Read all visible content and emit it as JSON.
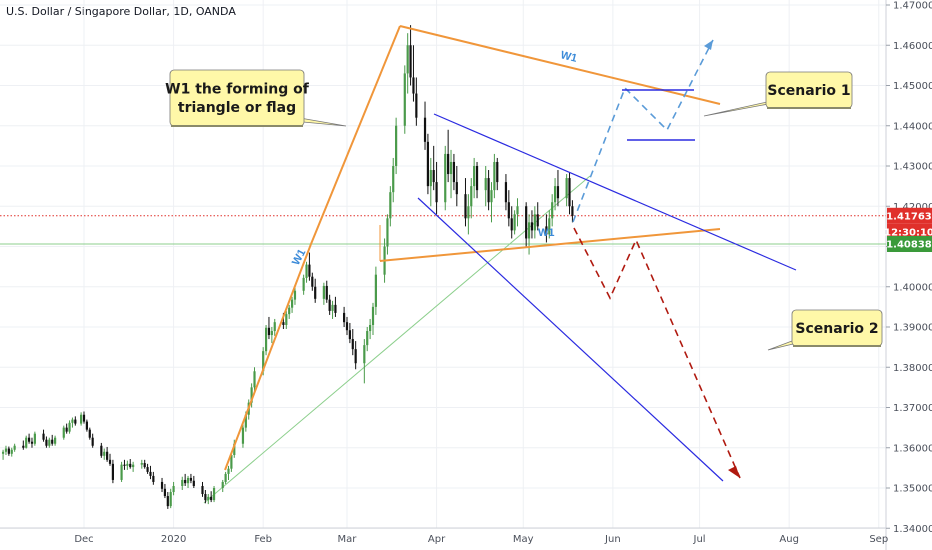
{
  "header": {
    "title": "U.S. Dollar / Singapore Dollar, 1D, OANDA"
  },
  "price_axis": {
    "current_price": "1.41763",
    "countdown": "12:30:10",
    "level_price": "1.40838"
  },
  "annotations": {
    "callout_main_line1": "W1 the forming of",
    "callout_main_line2": "triangle or flag",
    "scenario1": "Scenario 1",
    "scenario2": "Scenario 2",
    "wave_label_top": "W1",
    "wave_label_left": "W1",
    "wave_label_mid": "W1"
  },
  "colors": {
    "bull": "#4a9a4a",
    "bear": "#111111",
    "orange_line": "#f0963a",
    "blue_line": "#2b2be0",
    "green_line": "#8ccf8c",
    "scenario_up": "#5a9bd8",
    "scenario_down": "#b01a10",
    "callout_fill": "#fff8a8",
    "price_badge": "#e0302b",
    "level_badge": "#3a9a3a"
  },
  "chart_data": {
    "type": "candlestick",
    "symbol": "U.S. Dollar / Singapore Dollar",
    "timeframe": "1D",
    "source": "OANDA",
    "y_ticks": [
      "1.47000",
      "1.46000",
      "1.45000",
      "1.44000",
      "1.43000",
      "1.42000",
      "1.41000",
      "1.40000",
      "1.39000",
      "1.38000",
      "1.37000",
      "1.36000",
      "1.35000",
      "1.34000"
    ],
    "ylim": [
      1.3375,
      1.4725
    ],
    "x_labels": [
      {
        "label": "Dec",
        "day": 0
      },
      {
        "label": "2020",
        "day": 31
      },
      {
        "label": "Feb",
        "day": 62
      },
      {
        "label": "Mar",
        "day": 91
      },
      {
        "label": "Apr",
        "day": 122
      },
      {
        "label": "May",
        "day": 152
      },
      {
        "label": "Jun",
        "day": 183
      },
      {
        "label": "Jul",
        "day": 213
      },
      {
        "label": "Aug",
        "day": 244
      },
      {
        "label": "Sep",
        "day": 275
      }
    ],
    "current_price": 1.41763,
    "horizontal_level": 1.40838,
    "candles": [
      [
        -28,
        1.3585,
        1.3595,
        1.357,
        1.359
      ],
      [
        -27,
        1.359,
        1.3605,
        1.3582,
        1.3598
      ],
      [
        -26,
        1.3598,
        1.3603,
        1.358,
        1.3585
      ],
      [
        -25,
        1.3585,
        1.36,
        1.3578,
        1.3595
      ],
      [
        -24,
        1.3595,
        1.361,
        1.359,
        1.3605
      ],
      [
        -21,
        1.3605,
        1.3618,
        1.3595,
        1.36
      ],
      [
        -20,
        1.36,
        1.363,
        1.3598,
        1.3625
      ],
      [
        -19,
        1.3625,
        1.3635,
        1.361,
        1.3615
      ],
      [
        -18,
        1.3615,
        1.3625,
        1.36,
        1.361
      ],
      [
        -17,
        1.361,
        1.364,
        1.3605,
        1.3635
      ],
      [
        -14,
        1.3635,
        1.3645,
        1.3615,
        1.362
      ],
      [
        -13,
        1.362,
        1.3628,
        1.36,
        1.3605
      ],
      [
        -12,
        1.3605,
        1.3625,
        1.36,
        1.362
      ],
      [
        -11,
        1.362,
        1.3632,
        1.3605,
        1.361
      ],
      [
        -10,
        1.361,
        1.363,
        1.3605,
        1.3625
      ],
      [
        -7,
        1.3625,
        1.3655,
        1.362,
        1.365
      ],
      [
        -6,
        1.365,
        1.366,
        1.3635,
        1.364
      ],
      [
        -5,
        1.364,
        1.3668,
        1.3635,
        1.3662
      ],
      [
        -4,
        1.3662,
        1.3675,
        1.365,
        1.367
      ],
      [
        -3,
        1.367,
        1.3678,
        1.3655,
        1.366
      ],
      [
        -1,
        1.366,
        1.3688,
        1.3655,
        1.3682
      ],
      [
        0,
        1.3682,
        1.369,
        1.366,
        1.3665
      ],
      [
        1,
        1.3665,
        1.367,
        1.364,
        1.3645
      ],
      [
        2,
        1.3645,
        1.365,
        1.362,
        1.3625
      ],
      [
        3,
        1.3625,
        1.3635,
        1.36,
        1.3605
      ],
      [
        6,
        1.3605,
        1.3612,
        1.3575,
        1.358
      ],
      [
        7,
        1.358,
        1.3598,
        1.357,
        1.359
      ],
      [
        8,
        1.359,
        1.3602,
        1.3565,
        1.357
      ],
      [
        9,
        1.357,
        1.3585,
        1.3555,
        1.356
      ],
      [
        10,
        1.356,
        1.357,
        1.3512,
        1.352
      ],
      [
        13,
        1.352,
        1.3565,
        1.3515,
        1.3558
      ],
      [
        14,
        1.3558,
        1.357,
        1.3545,
        1.3555
      ],
      [
        15,
        1.3555,
        1.3568,
        1.3545,
        1.356
      ],
      [
        16,
        1.356,
        1.3572,
        1.3548,
        1.3552
      ],
      [
        17,
        1.3552,
        1.3565,
        1.354,
        1.3558
      ],
      [
        20,
        1.3558,
        1.357,
        1.3548,
        1.3562
      ],
      [
        21,
        1.3562,
        1.357,
        1.3548,
        1.3552
      ],
      [
        22,
        1.3552,
        1.356,
        1.3535,
        1.354
      ],
      [
        23,
        1.354,
        1.3555,
        1.3522,
        1.353
      ],
      [
        24,
        1.353,
        1.354,
        1.3508,
        1.3515
      ],
      [
        27,
        1.3515,
        1.3525,
        1.349,
        1.3498
      ],
      [
        28,
        1.3498,
        1.351,
        1.3475,
        1.348
      ],
      [
        29,
        1.348,
        1.349,
        1.3448,
        1.3455
      ],
      [
        30,
        1.3455,
        1.3498,
        1.345,
        1.349
      ],
      [
        31,
        1.349,
        1.3515,
        1.3482,
        1.3505
      ],
      [
        34,
        1.3505,
        1.3528,
        1.3495,
        1.352
      ],
      [
        35,
        1.352,
        1.3535,
        1.3505,
        1.3512
      ],
      [
        36,
        1.3512,
        1.353,
        1.35,
        1.3525
      ],
      [
        37,
        1.3525,
        1.3535,
        1.3512,
        1.3518
      ],
      [
        38,
        1.3518,
        1.353,
        1.35,
        1.3505
      ],
      [
        41,
        1.3505,
        1.3515,
        1.3478,
        1.3485
      ],
      [
        42,
        1.3485,
        1.3495,
        1.3462,
        1.347
      ],
      [
        43,
        1.347,
        1.3485,
        1.346,
        1.3478
      ],
      [
        44,
        1.3478,
        1.3492,
        1.3465,
        1.347
      ],
      [
        45,
        1.347,
        1.3505,
        1.3465,
        1.35
      ],
      [
        48,
        1.35,
        1.352,
        1.349,
        1.3515
      ],
      [
        49,
        1.3515,
        1.354,
        1.351,
        1.3535
      ],
      [
        50,
        1.3535,
        1.3555,
        1.352,
        1.3548
      ],
      [
        51,
        1.3548,
        1.359,
        1.354,
        1.3582
      ],
      [
        52,
        1.3582,
        1.362,
        1.3575,
        1.361
      ],
      [
        55,
        1.361,
        1.366,
        1.36,
        1.365
      ],
      [
        56,
        1.365,
        1.369,
        1.364,
        1.3682
      ],
      [
        57,
        1.3682,
        1.372,
        1.367,
        1.3712
      ],
      [
        58,
        1.3712,
        1.376,
        1.37,
        1.375
      ],
      [
        59,
        1.375,
        1.38,
        1.3738,
        1.379
      ],
      [
        62,
        1.379,
        1.385,
        1.378,
        1.384
      ],
      [
        63,
        1.384,
        1.3905,
        1.383,
        1.3898
      ],
      [
        64,
        1.3898,
        1.3925,
        1.387,
        1.388
      ],
      [
        65,
        1.388,
        1.39,
        1.386,
        1.389
      ],
      [
        66,
        1.389,
        1.392,
        1.3878,
        1.3912
      ],
      [
        69,
        1.3912,
        1.3935,
        1.3895,
        1.3905
      ],
      [
        70,
        1.3905,
        1.394,
        1.3895,
        1.3932
      ],
      [
        71,
        1.3932,
        1.3955,
        1.392,
        1.3948
      ],
      [
        72,
        1.3948,
        1.3975,
        1.3935,
        1.3968
      ],
      [
        73,
        1.3968,
        1.4,
        1.3955,
        1.399
      ],
      [
        76,
        1.399,
        1.403,
        1.398,
        1.4022
      ],
      [
        77,
        1.4022,
        1.4062,
        1.401,
        1.4055
      ],
      [
        78,
        1.4055,
        1.4085,
        1.4015,
        1.4025
      ],
      [
        79,
        1.4025,
        1.4035,
        1.399,
        1.4
      ],
      [
        80,
        1.4,
        1.402,
        1.396,
        1.397
      ],
      [
        83,
        1.397,
        1.401,
        1.3955,
        1.4002
      ],
      [
        84,
        1.4002,
        1.4015,
        1.396,
        1.3968
      ],
      [
        85,
        1.3968,
        1.398,
        1.393,
        1.394
      ],
      [
        86,
        1.394,
        1.3965,
        1.392,
        1.3955
      ],
      [
        87,
        1.3955,
        1.3975,
        1.3925,
        1.3935
      ],
      [
        90,
        1.3935,
        1.395,
        1.39,
        1.3912
      ],
      [
        91,
        1.3912,
        1.3925,
        1.388,
        1.3892
      ],
      [
        92,
        1.3892,
        1.391,
        1.386,
        1.387
      ],
      [
        93,
        1.387,
        1.3895,
        1.383,
        1.3845
      ],
      [
        94,
        1.3845,
        1.3865,
        1.3795,
        1.381
      ],
      [
        97,
        1.381,
        1.387,
        1.376,
        1.3855
      ],
      [
        98,
        1.3855,
        1.39,
        1.384,
        1.389
      ],
      [
        99,
        1.389,
        1.392,
        1.387,
        1.3905
      ],
      [
        100,
        1.3905,
        1.396,
        1.388,
        1.395
      ],
      [
        101,
        1.395,
        1.405,
        1.393,
        1.403
      ],
      [
        104,
        1.403,
        1.412,
        1.401,
        1.41
      ],
      [
        105,
        1.41,
        1.418,
        1.408,
        1.417
      ],
      [
        106,
        1.417,
        1.425,
        1.415,
        1.4235
      ],
      [
        107,
        1.4235,
        1.432,
        1.421,
        1.43
      ],
      [
        108,
        1.43,
        1.442,
        1.428,
        1.44
      ],
      [
        111,
        1.44,
        1.455,
        1.438,
        1.453
      ],
      [
        112,
        1.453,
        1.463,
        1.448,
        1.46
      ],
      [
        113,
        1.46,
        1.465,
        1.45,
        1.452
      ],
      [
        114,
        1.452,
        1.46,
        1.446,
        1.448
      ],
      [
        115,
        1.448,
        1.452,
        1.44,
        1.442
      ],
      [
        118,
        1.442,
        1.446,
        1.434,
        1.436
      ],
      [
        119,
        1.436,
        1.438,
        1.423,
        1.425
      ],
      [
        120,
        1.425,
        1.432,
        1.42,
        1.429
      ],
      [
        121,
        1.429,
        1.435,
        1.424,
        1.426
      ],
      [
        122,
        1.426,
        1.431,
        1.418,
        1.421
      ],
      [
        125,
        1.421,
        1.435,
        1.419,
        1.433
      ],
      [
        126,
        1.433,
        1.439,
        1.426,
        1.428
      ],
      [
        127,
        1.428,
        1.434,
        1.422,
        1.431
      ],
      [
        128,
        1.431,
        1.433,
        1.424,
        1.426
      ],
      [
        129,
        1.426,
        1.43,
        1.42,
        1.423
      ],
      [
        132,
        1.423,
        1.427,
        1.415,
        1.417
      ],
      [
        133,
        1.417,
        1.423,
        1.413,
        1.42
      ],
      [
        134,
        1.42,
        1.427,
        1.417,
        1.425
      ],
      [
        135,
        1.425,
        1.432,
        1.422,
        1.43
      ],
      [
        136,
        1.43,
        1.431,
        1.422,
        1.424
      ],
      [
        139,
        1.424,
        1.43,
        1.42,
        1.427
      ],
      [
        140,
        1.427,
        1.429,
        1.419,
        1.421
      ],
      [
        141,
        1.421,
        1.426,
        1.416,
        1.424
      ],
      [
        142,
        1.424,
        1.433,
        1.422,
        1.431
      ],
      [
        143,
        1.431,
        1.432,
        1.424,
        1.426
      ],
      [
        146,
        1.426,
        1.428,
        1.419,
        1.421
      ],
      [
        147,
        1.421,
        1.424,
        1.415,
        1.417
      ],
      [
        148,
        1.417,
        1.42,
        1.412,
        1.414
      ],
      [
        149,
        1.414,
        1.419,
        1.413,
        1.418
      ],
      [
        150,
        1.418,
        1.422,
        1.415,
        1.42
      ],
      [
        153,
        1.42,
        1.421,
        1.41,
        1.412
      ],
      [
        154,
        1.412,
        1.418,
        1.408,
        1.416
      ],
      [
        155,
        1.416,
        1.419,
        1.412,
        1.414
      ],
      [
        156,
        1.414,
        1.42,
        1.412,
        1.418
      ],
      [
        157,
        1.418,
        1.421,
        1.414,
        1.415
      ],
      [
        160,
        1.415,
        1.418,
        1.411,
        1.413
      ],
      [
        161,
        1.413,
        1.419,
        1.412,
        1.417
      ],
      [
        162,
        1.417,
        1.423,
        1.415,
        1.421
      ],
      [
        163,
        1.421,
        1.427,
        1.419,
        1.425
      ],
      [
        164,
        1.425,
        1.429,
        1.42,
        1.422
      ],
      [
        167,
        1.422,
        1.428,
        1.42,
        1.427
      ],
      [
        168,
        1.427,
        1.4285,
        1.418,
        1.42
      ],
      [
        169,
        1.42,
        1.4215,
        1.416,
        1.4176
      ]
    ]
  }
}
